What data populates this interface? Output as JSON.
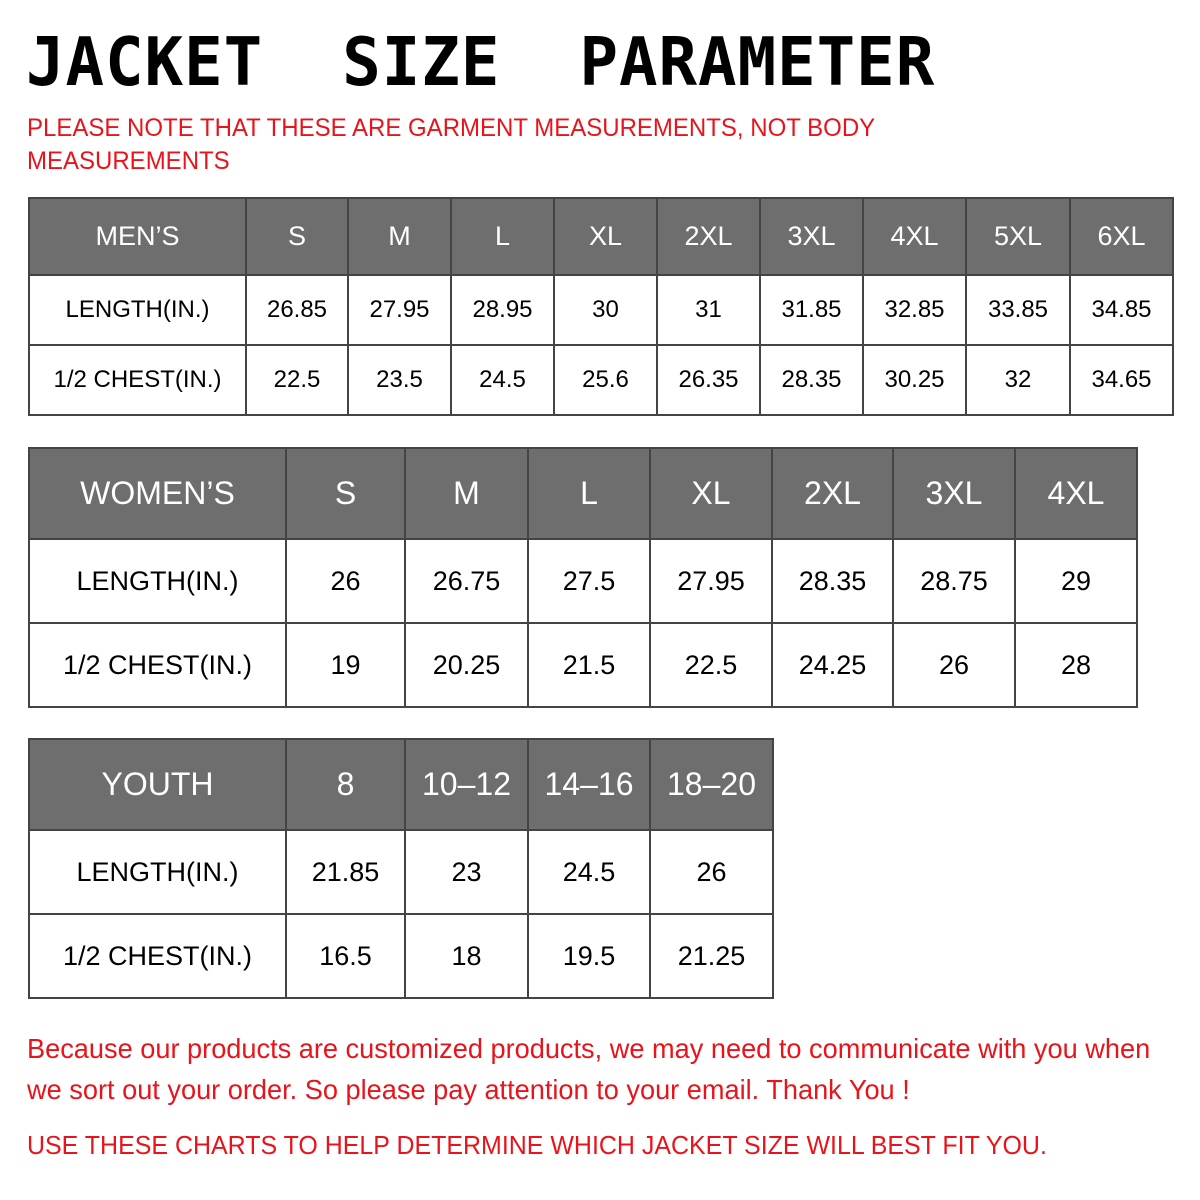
{
  "title": "JACKET  SIZE  PARAMETER",
  "note": "PLEASE NOTE THAT THESE ARE GARMENT MEASUREMENTS, NOT BODY MEASUREMENTS",
  "colors": {
    "header_bg": "#6e6e6e",
    "note_red": "#e8141b"
  },
  "tables": {
    "men": {
      "header": [
        "MEN’S",
        "S",
        "M",
        "L",
        "XL",
        "2XL",
        "3XL",
        "4XL",
        "5XL",
        "6XL"
      ],
      "rows": [
        [
          "LENGTH(IN.)",
          "26.85",
          "27.95",
          "28.95",
          "30",
          "31",
          "31.85",
          "32.85",
          "33.85",
          "34.85"
        ],
        [
          "1/2 CHEST(IN.)",
          "22.5",
          "23.5",
          "24.5",
          "25.6",
          "26.35",
          "28.35",
          "30.25",
          "32",
          "34.65"
        ]
      ]
    },
    "women": {
      "header": [
        "WOMEN’S",
        "S",
        "M",
        "L",
        "XL",
        "2XL",
        "3XL",
        "4XL"
      ],
      "rows": [
        [
          "LENGTH(IN.)",
          "26",
          "26.75",
          "27.5",
          "27.95",
          "28.35",
          "28.75",
          "29"
        ],
        [
          "1/2 CHEST(IN.)",
          "19",
          "20.25",
          "21.5",
          "22.5",
          "24.25",
          "26",
          "28"
        ]
      ]
    },
    "youth": {
      "header": [
        "YOUTH",
        "8",
        "10–12",
        "14–16",
        "18–20"
      ],
      "rows": [
        [
          "LENGTH(IN.)",
          "21.85",
          "23",
          "24.5",
          "26"
        ],
        [
          "1/2 CHEST(IN.)",
          "16.5",
          "18",
          "19.5",
          "21.25"
        ]
      ]
    }
  },
  "footer": "Because our products are customized products, we may need to communicate with you when we sort out your order. So please pay attention to your email. Thank You !",
  "bottom_note": "USE THESE CHARTS TO HELP DETERMINE WHICH JACKET SIZE WILL BEST FIT YOU."
}
